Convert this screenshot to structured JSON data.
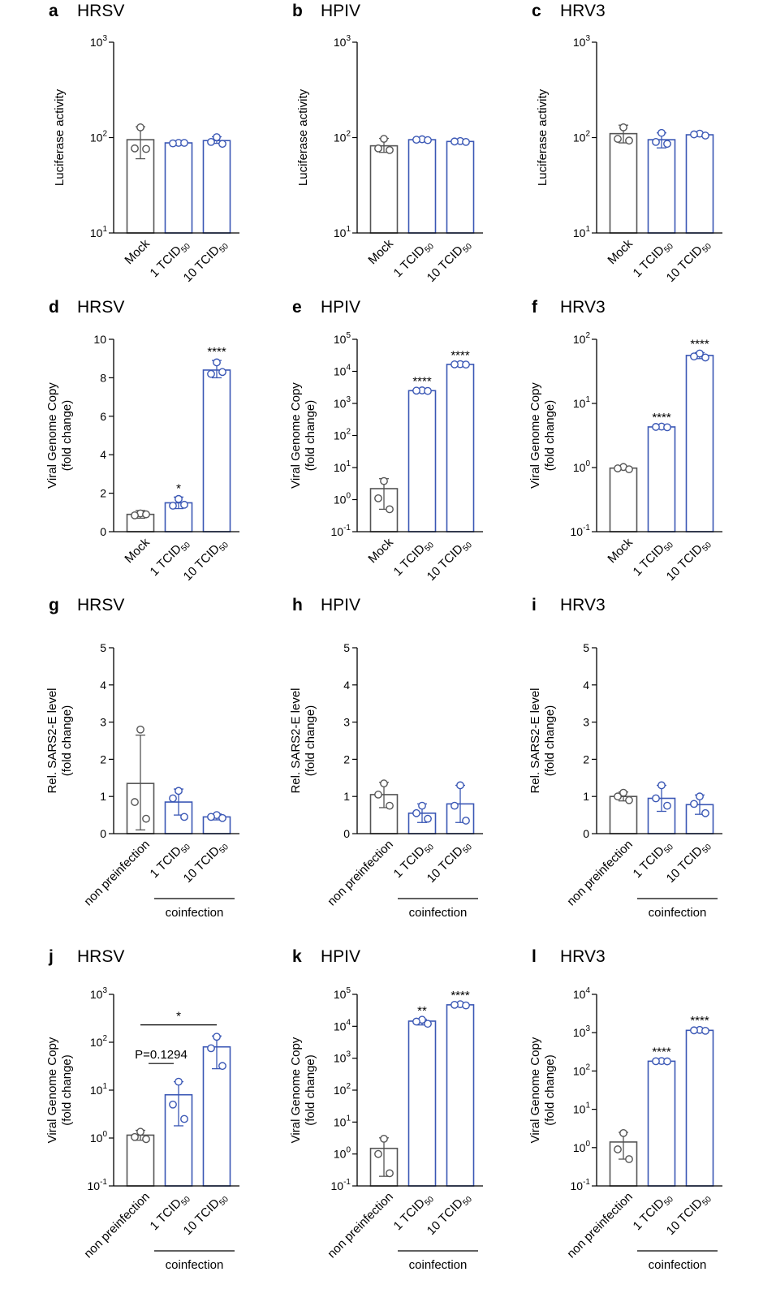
{
  "chart_data": [
    {
      "panel": "a",
      "title": "HRSV",
      "type": "bar",
      "scale": "log",
      "ylim": [
        1,
        3
      ],
      "yticks": [
        1,
        2,
        3
      ],
      "ylabel": [
        "Luciferase activity"
      ],
      "categories": [
        "Mock",
        "1 TCID",
        "10 TCID"
      ],
      "subscripts": [
        "",
        "50",
        "50"
      ],
      "values": [
        95,
        88,
        93
      ],
      "errors": [
        [
          60,
          130
        ],
        [
          85,
          91
        ],
        [
          87,
          102
        ]
      ],
      "points": [
        [
          128,
          77,
          76
        ],
        [
          88,
          87,
          88
        ],
        [
          101,
          90,
          86
        ]
      ],
      "colors": [
        "#555555",
        "#3a57b5",
        "#3a57b5"
      ],
      "annotations": [
        "",
        "",
        ""
      ],
      "group": "",
      "brackets": []
    },
    {
      "panel": "b",
      "title": "HPIV",
      "type": "bar",
      "scale": "log",
      "ylim": [
        1,
        3
      ],
      "yticks": [
        1,
        2,
        3
      ],
      "ylabel": [
        "Luciferase activity"
      ],
      "categories": [
        "Mock",
        "1 TCID",
        "10 TCID"
      ],
      "subscripts": [
        "",
        "50",
        "50"
      ],
      "values": [
        82,
        95,
        91
      ],
      "errors": [
        [
          70,
          98
        ],
        [
          92,
          98
        ],
        [
          88,
          93
        ]
      ],
      "points": [
        [
          97,
          77,
          74
        ],
        [
          96,
          95,
          94
        ],
        [
          92,
          91,
          90
        ]
      ],
      "colors": [
        "#555555",
        "#3a57b5",
        "#3a57b5"
      ],
      "annotations": [
        "",
        "",
        ""
      ],
      "group": "",
      "brackets": []
    },
    {
      "panel": "c",
      "title": "HRV3",
      "type": "bar",
      "scale": "log",
      "ylim": [
        1,
        3
      ],
      "yticks": [
        1,
        2,
        3
      ],
      "ylabel": [
        "Luciferase activity"
      ],
      "categories": [
        "Mock",
        "1 TCID",
        "10 TCID"
      ],
      "subscripts": [
        "",
        "50",
        "50"
      ],
      "values": [
        110,
        95,
        107
      ],
      "errors": [
        [
          88,
          135
        ],
        [
          78,
          112
        ],
        [
          103,
          110
        ]
      ],
      "points": [
        [
          128,
          97,
          93
        ],
        [
          112,
          90,
          86
        ],
        [
          110,
          108,
          105
        ]
      ],
      "colors": [
        "#555555",
        "#3a57b5",
        "#3a57b5"
      ],
      "annotations": [
        "",
        "",
        ""
      ],
      "group": "",
      "brackets": []
    },
    {
      "panel": "d",
      "title": "HRSV",
      "type": "bar",
      "scale": "linear",
      "ylim": [
        0,
        10
      ],
      "yticks": [
        0,
        2,
        4,
        6,
        8,
        10
      ],
      "ylabel": [
        "Viral Genome Copy",
        "(fold change)"
      ],
      "categories": [
        "Mock",
        "1 TCID",
        "10 TCID"
      ],
      "subscripts": [
        "",
        "50",
        "50"
      ],
      "values": [
        0.9,
        1.5,
        8.4
      ],
      "errors": [
        [
          0.7,
          1.1
        ],
        [
          1.2,
          1.8
        ],
        [
          8.0,
          8.9
        ]
      ],
      "points": [
        [
          0.95,
          0.85,
          0.9
        ],
        [
          1.7,
          1.35,
          1.4
        ],
        [
          8.8,
          8.2,
          8.3
        ]
      ],
      "colors": [
        "#555555",
        "#3a57b5",
        "#3a57b5"
      ],
      "annotations": [
        "",
        "*",
        "****"
      ],
      "group": "",
      "brackets": []
    },
    {
      "panel": "e",
      "title": "HPIV",
      "type": "bar",
      "scale": "log",
      "ylim": [
        -1,
        5
      ],
      "yticks": [
        -1,
        0,
        1,
        2,
        3,
        4,
        5
      ],
      "ylabel": [
        "Viral Genome Copy",
        "(fold change)"
      ],
      "categories": [
        "Mock",
        "1 TCID",
        "10 TCID"
      ],
      "subscripts": [
        "",
        "50",
        "50"
      ],
      "values": [
        2.2,
        2500,
        16500
      ],
      "errors": [
        [
          0.5,
          4.5
        ],
        [
          2300,
          2650
        ],
        [
          16000,
          17000
        ]
      ],
      "points": [
        [
          3.8,
          1.1,
          0.5
        ],
        [
          2550,
          2500,
          2450
        ],
        [
          16800,
          16500,
          16300
        ]
      ],
      "colors": [
        "#555555",
        "#3a57b5",
        "#3a57b5"
      ],
      "annotations": [
        "",
        "****",
        "****"
      ],
      "group": "",
      "brackets": []
    },
    {
      "panel": "f",
      "title": "HRV3",
      "type": "bar",
      "scale": "log",
      "ylim": [
        -1,
        2
      ],
      "yticks": [
        -1,
        0,
        1,
        2
      ],
      "ylabel": [
        "Viral Genome Copy",
        "(fold change)"
      ],
      "categories": [
        "Mock",
        "1 TCID",
        "10 TCID"
      ],
      "subscripts": [
        "",
        "50",
        "50"
      ],
      "values": [
        0.98,
        4.3,
        56
      ],
      "errors": [
        [
          0.92,
          1.04
        ],
        [
          4.2,
          4.4
        ],
        [
          50,
          62
        ]
      ],
      "points": [
        [
          1.02,
          0.97,
          0.94
        ],
        [
          4.35,
          4.3,
          4.25
        ],
        [
          60,
          54,
          52
        ]
      ],
      "colors": [
        "#555555",
        "#3a57b5",
        "#3a57b5"
      ],
      "annotations": [
        "",
        "****",
        "****"
      ],
      "group": "",
      "brackets": []
    },
    {
      "panel": "g",
      "title": "HRSV",
      "type": "bar",
      "scale": "linear",
      "ylim": [
        0,
        5
      ],
      "yticks": [
        0,
        1,
        2,
        3,
        4,
        5
      ],
      "ylabel": [
        "Rel. SARS2-E level",
        "(fold change)"
      ],
      "categories": [
        "non preinfection",
        "1 TCID",
        "10 TCID"
      ],
      "subscripts": [
        "",
        "50",
        "50"
      ],
      "values": [
        1.35,
        0.85,
        0.45
      ],
      "errors": [
        [
          0.1,
          2.65
        ],
        [
          0.5,
          1.2
        ],
        [
          0.37,
          0.53
        ]
      ],
      "points": [
        [
          2.8,
          0.85,
          0.4
        ],
        [
          1.15,
          0.95,
          0.45
        ],
        [
          0.5,
          0.45,
          0.42
        ]
      ],
      "colors": [
        "#555555",
        "#3a57b5",
        "#3a57b5"
      ],
      "annotations": [
        "",
        "",
        ""
      ],
      "group": "coinfection",
      "brackets": []
    },
    {
      "panel": "h",
      "title": "HPIV",
      "type": "bar",
      "scale": "linear",
      "ylim": [
        0,
        5
      ],
      "yticks": [
        0,
        1,
        2,
        3,
        4,
        5
      ],
      "ylabel": [
        "Rel. SARS2-E level",
        "(fold change)"
      ],
      "categories": [
        "non preinfection",
        "1 TCID",
        "10 TCID"
      ],
      "subscripts": [
        "",
        "50",
        "50"
      ],
      "values": [
        1.05,
        0.55,
        0.8
      ],
      "errors": [
        [
          0.7,
          1.38
        ],
        [
          0.3,
          0.8
        ],
        [
          0.3,
          1.3
        ]
      ],
      "points": [
        [
          1.35,
          1.05,
          0.75
        ],
        [
          0.75,
          0.55,
          0.4
        ],
        [
          1.3,
          0.75,
          0.35
        ]
      ],
      "colors": [
        "#555555",
        "#3a57b5",
        "#3a57b5"
      ],
      "annotations": [
        "",
        "",
        ""
      ],
      "group": "coinfection",
      "brackets": []
    },
    {
      "panel": "i",
      "title": "HRV3",
      "type": "bar",
      "scale": "linear",
      "ylim": [
        0,
        5
      ],
      "yticks": [
        0,
        1,
        2,
        3,
        4,
        5
      ],
      "ylabel": [
        "Rel. SARS2-E level",
        "(fold change)"
      ],
      "categories": [
        "non preinfection",
        "1 TCID",
        "10 TCID"
      ],
      "subscripts": [
        "",
        "50",
        "50"
      ],
      "values": [
        1.0,
        0.95,
        0.78
      ],
      "errors": [
        [
          0.88,
          1.12
        ],
        [
          0.6,
          1.3
        ],
        [
          0.52,
          1.04
        ]
      ],
      "points": [
        [
          1.1,
          1.0,
          0.9
        ],
        [
          1.3,
          0.95,
          0.75
        ],
        [
          1.0,
          0.8,
          0.55
        ]
      ],
      "colors": [
        "#555555",
        "#3a57b5",
        "#3a57b5"
      ],
      "annotations": [
        "",
        "",
        ""
      ],
      "group": "coinfection",
      "brackets": []
    },
    {
      "panel": "j",
      "title": "HRSV",
      "type": "bar",
      "scale": "log",
      "ylim": [
        -1,
        3
      ],
      "yticks": [
        -1,
        0,
        1,
        2,
        3
      ],
      "ylabel": [
        "Viral Genome Copy",
        "(fold change)"
      ],
      "categories": [
        "non preinfection",
        "1 TCID",
        "10 TCID"
      ],
      "subscripts": [
        "",
        "50",
        "50"
      ],
      "values": [
        1.15,
        8,
        80
      ],
      "errors": [
        [
          0.9,
          1.45
        ],
        [
          1.8,
          15
        ],
        [
          28,
          135
        ]
      ],
      "points": [
        [
          1.35,
          1.05,
          0.95
        ],
        [
          15,
          5,
          2.5
        ],
        [
          130,
          75,
          32
        ]
      ],
      "colors": [
        "#555555",
        "#3a57b5",
        "#3a57b5"
      ],
      "annotations": [
        "",
        "",
        ""
      ],
      "group": "coinfection",
      "brackets": [
        {
          "from": 0,
          "to": 2,
          "value": 230,
          "label": "*"
        },
        {
          "from": 0,
          "to": 1,
          "value": 36,
          "label": "P=0.1294"
        }
      ]
    },
    {
      "panel": "k",
      "title": "HPIV",
      "type": "bar",
      "scale": "log",
      "ylim": [
        -1,
        5
      ],
      "yticks": [
        -1,
        0,
        1,
        2,
        3,
        4,
        5
      ],
      "ylabel": [
        "Viral Genome Copy",
        "(fold change)"
      ],
      "categories": [
        "non preinfection",
        "1 TCID",
        "10 TCID"
      ],
      "subscripts": [
        "",
        "50",
        "50"
      ],
      "values": [
        1.5,
        14500,
        47000
      ],
      "errors": [
        [
          0.2,
          3.2
        ],
        [
          11000,
          16500
        ],
        [
          45000,
          50000
        ]
      ],
      "points": [
        [
          3.0,
          1.0,
          0.25
        ],
        [
          16000,
          14000,
          12000
        ],
        [
          49000,
          47000,
          45000
        ]
      ],
      "colors": [
        "#555555",
        "#3a57b5",
        "#3a57b5"
      ],
      "annotations": [
        "",
        "**",
        "****"
      ],
      "group": "coinfection",
      "brackets": []
    },
    {
      "panel": "l",
      "title": "HRV3",
      "type": "bar",
      "scale": "log",
      "ylim": [
        -1,
        4
      ],
      "yticks": [
        -1,
        0,
        1,
        2,
        3,
        4
      ],
      "ylabel": [
        "Viral Genome Copy",
        "(fold change)"
      ],
      "categories": [
        "non preinfection",
        "1 TCID",
        "10 TCID"
      ],
      "subscripts": [
        "",
        "50",
        "50"
      ],
      "values": [
        1.4,
        180,
        1150
      ],
      "errors": [
        [
          0.5,
          2.5
        ],
        [
          172,
          188
        ],
        [
          1080,
          1220
        ]
      ],
      "points": [
        [
          2.4,
          0.9,
          0.5
        ],
        [
          182,
          180,
          178
        ],
        [
          1180,
          1150,
          1120
        ]
      ],
      "colors": [
        "#555555",
        "#3a57b5",
        "#3a57b5"
      ],
      "annotations": [
        "",
        "****",
        "****"
      ],
      "group": "coinfection",
      "brackets": []
    }
  ]
}
